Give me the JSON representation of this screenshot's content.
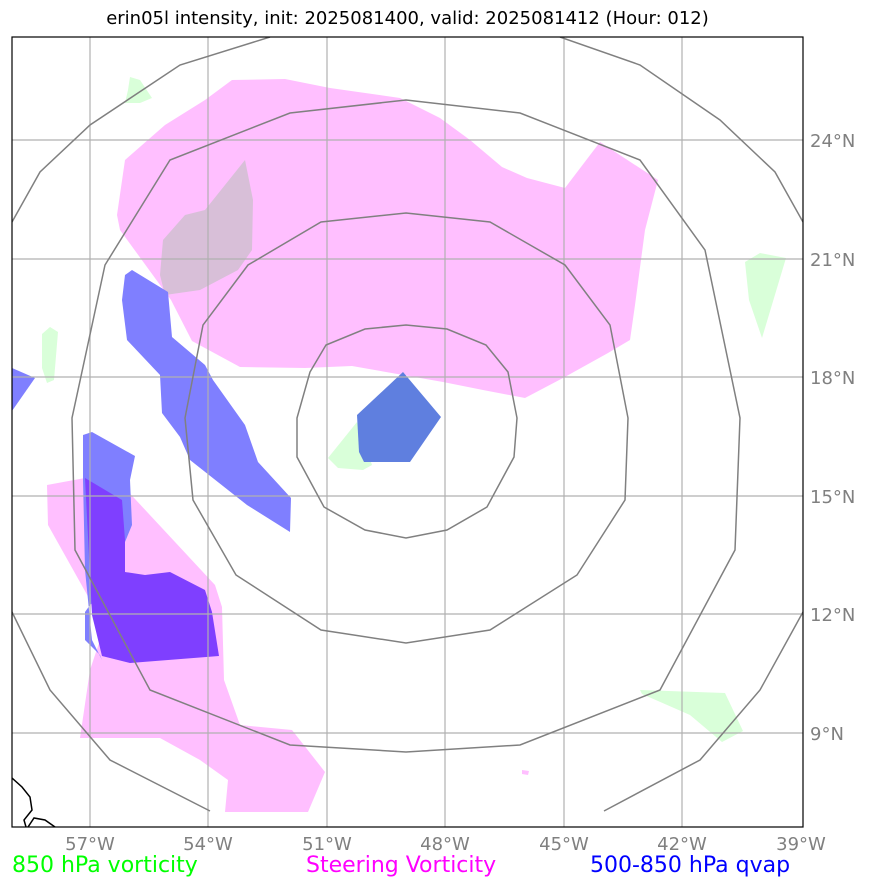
{
  "title": "erin05l intensity, init: 2025081400, valid: 2025081412 (Hour: 012)",
  "lon_labels": [
    "57°W",
    "54°W",
    "51°W",
    "48°W",
    "45°W",
    "42°W",
    "39°W"
  ],
  "lat_labels": [
    "24°N",
    "21°N",
    "18°N",
    "15°N",
    "12°N",
    "9°N"
  ],
  "legend": [
    {
      "label": "850 hPa vorticity",
      "color": "#00ff00"
    },
    {
      "label": "Steering Vorticity",
      "color": "#ff00ff"
    },
    {
      "label": "500-850 hPa qvap",
      "color": "#0000ff"
    }
  ],
  "layer_colors": {
    "vorticity_850": "#d9ffd9",
    "steering_vorticity": "#ffbfff",
    "qvap": "#7f7fff",
    "qvap_overlap_steering": "#7f3fff",
    "qvap_overlap_vorticity": "#5f7fdf",
    "range_rings": "#808080",
    "gridlines": "#b0b0b0",
    "coastline": "#000000"
  }
}
